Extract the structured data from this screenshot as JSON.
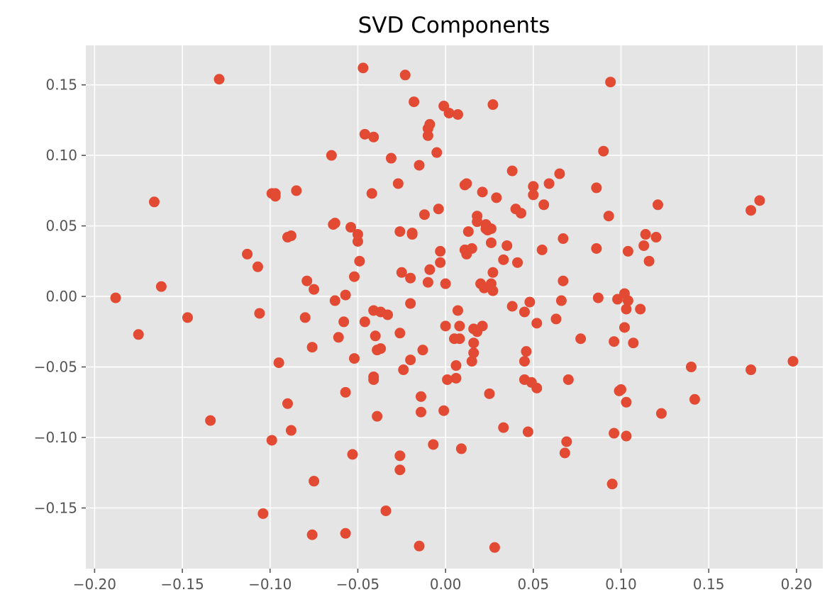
{
  "chart_data": {
    "type": "scatter",
    "title": "SVD Components",
    "xlabel": "",
    "ylabel": "",
    "xlim": [
      -0.205,
      0.215
    ],
    "ylim": [
      -0.193,
      0.178
    ],
    "x_ticks": [
      -0.2,
      -0.15,
      -0.1,
      -0.05,
      0.0,
      0.05,
      0.1,
      0.15,
      0.2
    ],
    "x_tick_labels": [
      "−0.20",
      "−0.15",
      "−0.10",
      "−0.05",
      "0.00",
      "0.05",
      "0.10",
      "0.15",
      "0.20"
    ],
    "y_ticks": [
      0.15,
      0.1,
      0.05,
      0.0,
      -0.05,
      -0.1,
      -0.15
    ],
    "y_tick_labels": [
      "0.15",
      "0.10",
      "0.05",
      "0.00",
      "−0.05",
      "−0.10",
      "−0.15"
    ],
    "grid": true,
    "background_color": "#e5e5e5",
    "marker_color": "#e24a33",
    "points": [
      [
        -0.188,
        -0.001
      ],
      [
        -0.175,
        -0.027
      ],
      [
        -0.166,
        0.067
      ],
      [
        -0.162,
        0.007
      ],
      [
        -0.147,
        -0.015
      ],
      [
        -0.134,
        -0.088
      ],
      [
        -0.129,
        0.154
      ],
      [
        -0.113,
        0.03
      ],
      [
        -0.107,
        0.021
      ],
      [
        -0.106,
        -0.012
      ],
      [
        -0.104,
        -0.154
      ],
      [
        -0.099,
        -0.102
      ],
      [
        -0.099,
        0.073
      ],
      [
        -0.097,
        0.073
      ],
      [
        -0.097,
        0.071
      ],
      [
        -0.095,
        -0.047
      ],
      [
        -0.09,
        0.042
      ],
      [
        -0.09,
        -0.076
      ],
      [
        -0.088,
        0.043
      ],
      [
        -0.088,
        -0.095
      ],
      [
        -0.085,
        0.075
      ],
      [
        -0.08,
        -0.015
      ],
      [
        -0.079,
        0.011
      ],
      [
        -0.076,
        -0.036
      ],
      [
        -0.076,
        -0.169
      ],
      [
        -0.075,
        -0.131
      ],
      [
        -0.075,
        0.005
      ],
      [
        -0.065,
        0.1
      ],
      [
        -0.064,
        0.051
      ],
      [
        -0.063,
        0.052
      ],
      [
        -0.063,
        -0.003
      ],
      [
        -0.061,
        -0.029
      ],
      [
        -0.058,
        -0.018
      ],
      [
        -0.057,
        0.001
      ],
      [
        -0.057,
        -0.068
      ],
      [
        -0.057,
        -0.168
      ],
      [
        -0.054,
        0.049
      ],
      [
        -0.053,
        -0.112
      ],
      [
        -0.052,
        0.014
      ],
      [
        -0.052,
        -0.044
      ],
      [
        -0.05,
        0.044
      ],
      [
        -0.05,
        0.039
      ],
      [
        -0.049,
        0.025
      ],
      [
        -0.047,
        0.162
      ],
      [
        -0.046,
        0.115
      ],
      [
        -0.046,
        -0.018
      ],
      [
        -0.042,
        0.073
      ],
      [
        -0.041,
        0.113
      ],
      [
        -0.041,
        -0.01
      ],
      [
        -0.041,
        -0.057
      ],
      [
        -0.041,
        -0.059
      ],
      [
        -0.04,
        -0.028
      ],
      [
        -0.039,
        -0.085
      ],
      [
        -0.039,
        -0.038
      ],
      [
        -0.037,
        -0.011
      ],
      [
        -0.037,
        -0.037
      ],
      [
        -0.034,
        -0.152
      ],
      [
        -0.033,
        -0.013
      ],
      [
        -0.031,
        0.098
      ],
      [
        -0.027,
        0.08
      ],
      [
        -0.026,
        -0.026
      ],
      [
        -0.026,
        0.046
      ],
      [
        -0.026,
        -0.113
      ],
      [
        -0.026,
        -0.123
      ],
      [
        -0.025,
        0.017
      ],
      [
        -0.024,
        -0.052
      ],
      [
        -0.023,
        0.157
      ],
      [
        -0.02,
        0.013
      ],
      [
        -0.02,
        -0.045
      ],
      [
        -0.02,
        -0.005
      ],
      [
        -0.019,
        0.045
      ],
      [
        -0.019,
        0.044
      ],
      [
        -0.018,
        0.138
      ],
      [
        -0.015,
        -0.177
      ],
      [
        -0.015,
        0.093
      ],
      [
        -0.014,
        -0.071
      ],
      [
        -0.014,
        -0.082
      ],
      [
        -0.013,
        -0.038
      ],
      [
        -0.012,
        0.058
      ],
      [
        -0.01,
        0.114
      ],
      [
        -0.01,
        0.119
      ],
      [
        -0.01,
        0.01
      ],
      [
        -0.009,
        0.122
      ],
      [
        -0.009,
        0.019
      ],
      [
        -0.007,
        -0.105
      ],
      [
        -0.005,
        0.102
      ],
      [
        -0.004,
        0.062
      ],
      [
        -0.003,
        0.024
      ],
      [
        -0.003,
        0.032
      ],
      [
        -0.001,
        0.135
      ],
      [
        -0.001,
        -0.081
      ],
      [
        0.0,
        0.009
      ],
      [
        0.0,
        -0.021
      ],
      [
        0.001,
        -0.059
      ],
      [
        0.002,
        0.13
      ],
      [
        0.005,
        -0.03
      ],
      [
        0.006,
        -0.049
      ],
      [
        0.006,
        -0.058
      ],
      [
        0.007,
        -0.01
      ],
      [
        0.007,
        0.129
      ],
      [
        0.008,
        -0.021
      ],
      [
        0.008,
        -0.03
      ],
      [
        0.009,
        -0.108
      ],
      [
        0.011,
        0.033
      ],
      [
        0.011,
        0.079
      ],
      [
        0.012,
        0.08
      ],
      [
        0.012,
        0.03
      ],
      [
        0.013,
        0.046
      ],
      [
        0.015,
        -0.046
      ],
      [
        0.015,
        0.034
      ],
      [
        0.016,
        -0.023
      ],
      [
        0.016,
        -0.033
      ],
      [
        0.016,
        -0.04
      ],
      [
        0.018,
        -0.025
      ],
      [
        0.018,
        0.057
      ],
      [
        0.018,
        0.053
      ],
      [
        0.02,
        0.009
      ],
      [
        0.021,
        0.074
      ],
      [
        0.021,
        -0.021
      ],
      [
        0.022,
        0.006
      ],
      [
        0.023,
        0.051
      ],
      [
        0.023,
        0.048
      ],
      [
        0.024,
        0.047
      ],
      [
        0.025,
        -0.069
      ],
      [
        0.026,
        0.009
      ],
      [
        0.026,
        0.038
      ],
      [
        0.026,
        0.048
      ],
      [
        0.027,
        0.136
      ],
      [
        0.027,
        0.004
      ],
      [
        0.027,
        0.017
      ],
      [
        0.028,
        -0.178
      ],
      [
        0.029,
        0.07
      ],
      [
        0.033,
        -0.093
      ],
      [
        0.033,
        0.026
      ],
      [
        0.035,
        0.036
      ],
      [
        0.038,
        -0.007
      ],
      [
        0.038,
        0.089
      ],
      [
        0.04,
        0.062
      ],
      [
        0.041,
        0.024
      ],
      [
        0.043,
        0.059
      ],
      [
        0.045,
        -0.059
      ],
      [
        0.045,
        -0.011
      ],
      [
        0.045,
        -0.046
      ],
      [
        0.046,
        -0.039
      ],
      [
        0.047,
        -0.096
      ],
      [
        0.048,
        -0.004
      ],
      [
        0.049,
        -0.061
      ],
      [
        0.05,
        0.078
      ],
      [
        0.05,
        0.072
      ],
      [
        0.052,
        -0.065
      ],
      [
        0.052,
        -0.019
      ],
      [
        0.055,
        0.033
      ],
      [
        0.056,
        0.065
      ],
      [
        0.059,
        0.08
      ],
      [
        0.063,
        -0.016
      ],
      [
        0.065,
        0.087
      ],
      [
        0.066,
        -0.003
      ],
      [
        0.067,
        0.041
      ],
      [
        0.067,
        0.011
      ],
      [
        0.068,
        -0.111
      ],
      [
        0.069,
        -0.103
      ],
      [
        0.07,
        -0.059
      ],
      [
        0.077,
        -0.03
      ],
      [
        0.086,
        0.077
      ],
      [
        0.086,
        0.034
      ],
      [
        0.087,
        -0.001
      ],
      [
        0.09,
        0.103
      ],
      [
        0.093,
        0.057
      ],
      [
        0.094,
        0.152
      ],
      [
        0.095,
        -0.133
      ],
      [
        0.096,
        -0.032
      ],
      [
        0.096,
        -0.097
      ],
      [
        0.098,
        -0.002
      ],
      [
        0.099,
        -0.067
      ],
      [
        0.1,
        -0.066
      ],
      [
        0.102,
        -0.022
      ],
      [
        0.102,
        0.002
      ],
      [
        0.103,
        -0.009
      ],
      [
        0.103,
        -0.075
      ],
      [
        0.103,
        -0.099
      ],
      [
        0.104,
        -0.003
      ],
      [
        0.104,
        0.032
      ],
      [
        0.107,
        -0.033
      ],
      [
        0.111,
        -0.009
      ],
      [
        0.113,
        0.036
      ],
      [
        0.114,
        0.044
      ],
      [
        0.116,
        0.025
      ],
      [
        0.12,
        0.042
      ],
      [
        0.121,
        0.065
      ],
      [
        0.123,
        -0.083
      ],
      [
        0.14,
        -0.05
      ],
      [
        0.142,
        -0.073
      ],
      [
        0.174,
        0.061
      ],
      [
        0.174,
        -0.052
      ],
      [
        0.179,
        0.068
      ],
      [
        0.198,
        -0.046
      ]
    ]
  }
}
